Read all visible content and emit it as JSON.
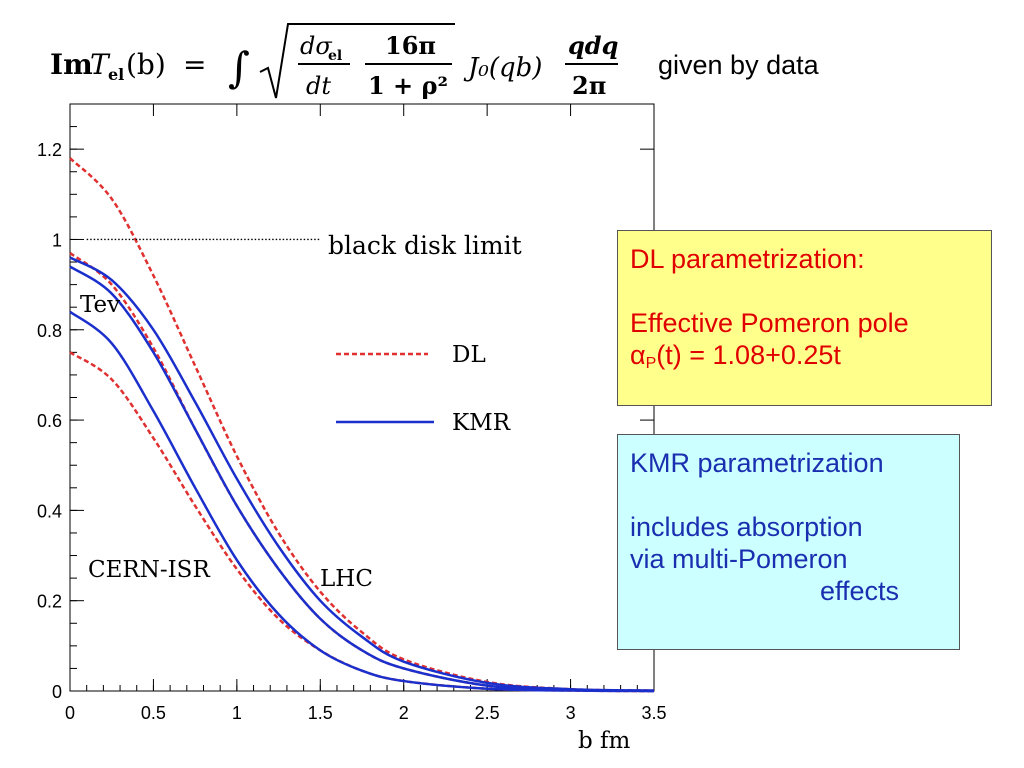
{
  "formula": {
    "lhs_im": "Im",
    "lhs_T": "T",
    "lhs_sub": "el",
    "lhs_arg": "(b)",
    "equals": "=",
    "integral": "∫",
    "num1": "dσ",
    "num1_sub": "el",
    "den1": "dt",
    "num2": "16π",
    "den2": "1 + ρ²",
    "bessel": "J₀(qb)",
    "num3": "qdq",
    "den3": "2π",
    "note": "given by data"
  },
  "chart_data": {
    "type": "line",
    "xlabel": "b fm",
    "ylabel": "",
    "xlim": [
      0,
      3.5
    ],
    "ylim": [
      0,
      1.3
    ],
    "x_ticks": [
      "0",
      "0.5",
      "1",
      "1.5",
      "2",
      "2.5",
      "3",
      "3.5"
    ],
    "y_ticks": [
      "0",
      "0.2",
      "0.4",
      "0.6",
      "0.8",
      "1",
      "1.2"
    ],
    "x_tick_values": [
      0,
      0.5,
      1,
      1.5,
      2,
      2.5,
      3,
      3.5
    ],
    "y_tick_values": [
      0,
      0.2,
      0.4,
      0.6,
      0.8,
      1.0,
      1.2
    ],
    "grid": false,
    "x": [
      0,
      0.25,
      0.5,
      0.75,
      1.0,
      1.25,
      1.5,
      1.75,
      2.0,
      2.5,
      3.0,
      3.5
    ],
    "series": [
      {
        "name": "DL",
        "group": "LHC",
        "style": "dashed",
        "color": "#e03030",
        "values": [
          1.18,
          1.09,
          0.92,
          0.72,
          0.52,
          0.35,
          0.22,
          0.13,
          0.07,
          0.02,
          0.004,
          0.001
        ]
      },
      {
        "name": "DL",
        "group": "Tev",
        "style": "dashed",
        "color": "#e03030",
        "values": [
          0.97,
          0.9,
          0.76,
          0.58,
          0.41,
          0.27,
          0.16,
          0.09,
          0.05,
          0.012,
          0.002,
          0.0
        ]
      },
      {
        "name": "DL",
        "group": "CERN-ISR",
        "style": "dashed",
        "color": "#e03030",
        "values": [
          0.75,
          0.69,
          0.56,
          0.41,
          0.27,
          0.16,
          0.09,
          0.045,
          0.022,
          0.005,
          0.001,
          0.0
        ]
      },
      {
        "name": "KMR",
        "group": "LHC",
        "style": "solid",
        "color": "#1a2fcc",
        "values": [
          0.96,
          0.91,
          0.8,
          0.64,
          0.47,
          0.32,
          0.2,
          0.12,
          0.065,
          0.018,
          0.004,
          0.001
        ]
      },
      {
        "name": "KMR",
        "group": "Tev",
        "style": "solid",
        "color": "#1a2fcc",
        "values": [
          0.94,
          0.88,
          0.75,
          0.58,
          0.41,
          0.27,
          0.16,
          0.09,
          0.05,
          0.012,
          0.002,
          0.0
        ]
      },
      {
        "name": "KMR",
        "group": "CERN-ISR",
        "style": "solid",
        "color": "#1a2fcc",
        "values": [
          0.84,
          0.77,
          0.62,
          0.45,
          0.29,
          0.17,
          0.09,
          0.045,
          0.022,
          0.005,
          0.001,
          0.0
        ]
      }
    ],
    "reference_line": {
      "label": "black disk limit",
      "y": 1.0,
      "x_range": [
        0.1,
        1.5
      ],
      "style": "dotted"
    },
    "annotations": {
      "tev": "Tev",
      "cern_isr": "CERN-ISR",
      "lhc": "LHC"
    },
    "legend": [
      {
        "label": "DL",
        "style": "dashed",
        "color": "#e03030"
      },
      {
        "label": "KMR",
        "style": "solid",
        "color": "#1a2fcc"
      }
    ]
  },
  "dl_box": {
    "line1": "DL parametrization:",
    "line2": "Effective Pomeron pole",
    "alpha": "α",
    "alpha_sub": "P",
    "formula_rest": "(t) = 1.08+0.25t",
    "bg": "#ffff8c",
    "color": "#e00000"
  },
  "kmr_box": {
    "line1": "KMR parametrization",
    "line2": "includes absorption",
    "line3": "via multi-Pomeron",
    "line4": "effects",
    "bg": "#ccffff",
    "color": "#1a2fb0"
  }
}
